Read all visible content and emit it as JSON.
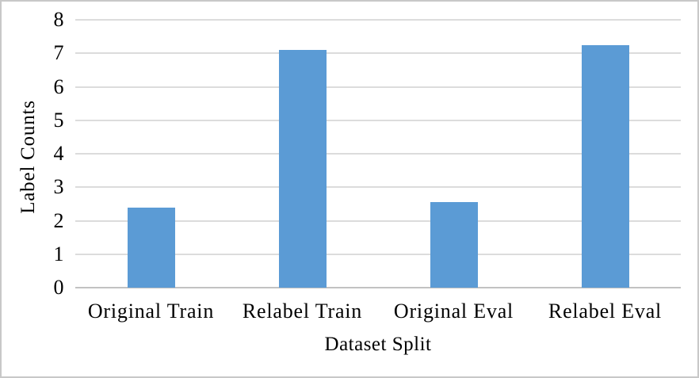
{
  "chart_data": {
    "type": "bar",
    "title": "",
    "categories": [
      "Original Train",
      "Relabel Train",
      "Original Eval",
      "Relabel Eval"
    ],
    "values": [
      2.4,
      7.1,
      2.55,
      7.25
    ],
    "xlabel": "Dataset Split",
    "ylabel": "Label Counts",
    "ylim": [
      0,
      8
    ],
    "yticks": [
      0,
      1,
      2,
      3,
      4,
      5,
      6,
      7,
      8
    ],
    "grid": true,
    "legend_position": "none",
    "bar_color": "#5b9bd5",
    "gridline_color": "#dcdcdc",
    "axis_line_color": "#c2c2c2",
    "frame_border_color": "#c8c8c8",
    "text_color": "#000000",
    "background_color": "#ffffff"
  }
}
